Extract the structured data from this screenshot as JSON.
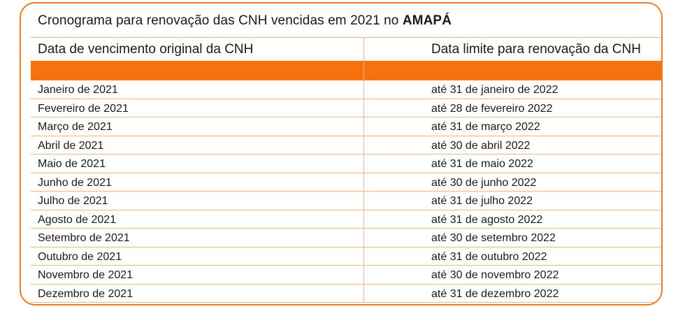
{
  "title": {
    "text": "Cronograma para renovação das CNH vencidas em 2021 no ",
    "highlight": "AMAPÁ"
  },
  "table": {
    "headers": [
      "Data de vencimento original da CNH",
      "Data limite para renovação da CNH"
    ],
    "rows": [
      [
        "Janeiro de 2021",
        "até 31 de janeiro de 2022"
      ],
      [
        "Fevereiro de 2021",
        "até 28 de fevereiro 2022"
      ],
      [
        "Março de 2021",
        "até 31 de março 2022"
      ],
      [
        "Abril de 2021",
        "até 30 de abril 2022"
      ],
      [
        "Maio de 2021",
        "até 31 de maio 2022"
      ],
      [
        "Junho de 2021",
        "até 30 de junho 2022"
      ],
      [
        "Julho de 2021",
        "até 31 de julho 2022"
      ],
      [
        "Agosto de 2021",
        "até 31 de agosto 2022"
      ],
      [
        "Setembro de 2021",
        "até 30 de setembro 2022"
      ],
      [
        "Outubro de 2021",
        "até 31 de outubro 2022"
      ],
      [
        "Novembro de 2021",
        "até 30 de novembro 2022"
      ],
      [
        "Dezembro de 2021",
        "até 31 de dezembro 2022"
      ]
    ]
  },
  "colors": {
    "accent": "#f6720f",
    "border": "#ee7a1f",
    "gridline": "#e9b489"
  }
}
